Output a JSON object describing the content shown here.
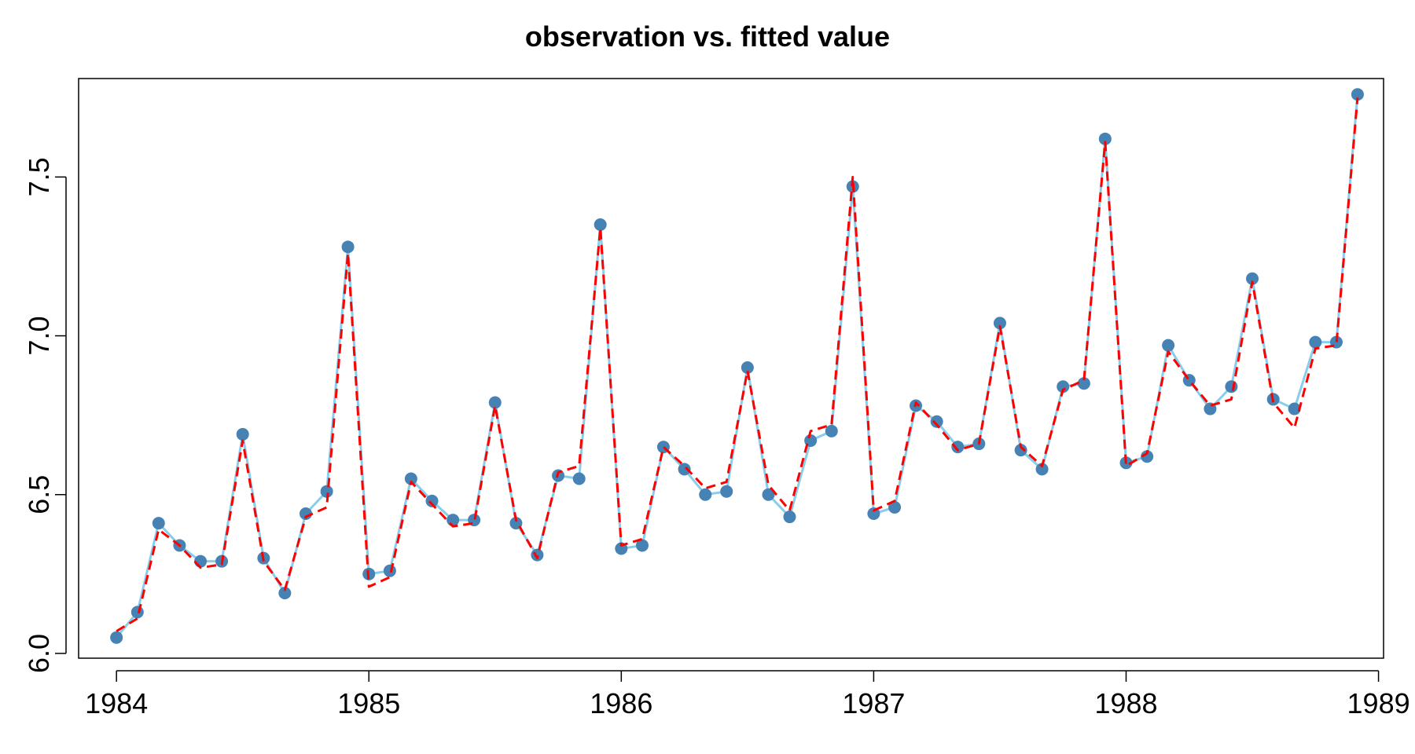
{
  "chart_data": {
    "type": "line",
    "title": "observation vs. fitted value",
    "xlabel": "",
    "ylabel": "",
    "xlim": [
      1983.85,
      1989.02
    ],
    "ylim": [
      5.985,
      7.81
    ],
    "x_ticks": [
      1984,
      1985,
      1986,
      1987,
      1988,
      1989
    ],
    "y_ticks": [
      6.0,
      6.5,
      7.0,
      7.5
    ],
    "y_tick_labels": [
      "6.0",
      "6.5",
      "7.0",
      "7.5"
    ],
    "grid": false,
    "legend": "none",
    "x": [
      1984.0,
      1984.083,
      1984.167,
      1984.25,
      1984.333,
      1984.417,
      1984.5,
      1984.583,
      1984.667,
      1984.75,
      1984.833,
      1984.917,
      1985.0,
      1985.083,
      1985.167,
      1985.25,
      1985.333,
      1985.417,
      1985.5,
      1985.583,
      1985.667,
      1985.75,
      1985.833,
      1985.917,
      1986.0,
      1986.083,
      1986.167,
      1986.25,
      1986.333,
      1986.417,
      1986.5,
      1986.583,
      1986.667,
      1986.75,
      1986.833,
      1986.917,
      1987.0,
      1987.083,
      1987.167,
      1987.25,
      1987.333,
      1987.417,
      1987.5,
      1987.583,
      1987.667,
      1987.75,
      1987.833,
      1987.917,
      1988.0,
      1988.083,
      1988.167,
      1988.25,
      1988.333,
      1988.417,
      1988.5,
      1988.583,
      1988.667,
      1988.75,
      1988.833,
      1988.917
    ],
    "series": [
      {
        "color": "#4682B4",
        "line_color": "#87CEEB",
        "style": "line+points",
        "values": [
          6.05,
          6.13,
          6.41,
          6.34,
          6.29,
          6.29,
          6.69,
          6.3,
          6.19,
          6.44,
          6.51,
          7.28,
          6.25,
          6.26,
          6.55,
          6.48,
          6.42,
          6.42,
          6.79,
          6.41,
          6.31,
          6.56,
          6.55,
          7.35,
          6.33,
          6.34,
          6.65,
          6.58,
          6.5,
          6.51,
          6.9,
          6.5,
          6.43,
          6.67,
          6.7,
          7.47,
          6.44,
          6.46,
          6.78,
          6.73,
          6.65,
          6.66,
          7.04,
          6.64,
          6.58,
          6.84,
          6.85,
          7.62,
          6.6,
          6.62,
          6.97,
          6.86,
          6.77,
          6.84,
          7.18,
          6.8,
          6.77,
          6.98,
          6.98,
          7.76
        ]
      },
      {
        "color": "#ff0000",
        "style": "dashed",
        "values": [
          6.07,
          6.11,
          6.39,
          6.34,
          6.27,
          6.28,
          6.67,
          6.29,
          6.2,
          6.43,
          6.46,
          7.26,
          6.21,
          6.24,
          6.54,
          6.47,
          6.4,
          6.41,
          6.78,
          6.42,
          6.3,
          6.57,
          6.59,
          7.34,
          6.34,
          6.36,
          6.65,
          6.59,
          6.52,
          6.54,
          6.89,
          6.53,
          6.45,
          6.7,
          6.72,
          7.5,
          6.45,
          6.48,
          6.79,
          6.72,
          6.64,
          6.66,
          7.03,
          6.65,
          6.59,
          6.83,
          6.86,
          7.61,
          6.59,
          6.63,
          6.95,
          6.86,
          6.78,
          6.8,
          7.17,
          6.79,
          6.71,
          6.96,
          6.97,
          7.75
        ]
      }
    ]
  },
  "colors": {
    "observed_points": "#4682B4",
    "observed_line": "#87CEEB",
    "fitted_line": "#ff0000",
    "axis": "#000000"
  }
}
